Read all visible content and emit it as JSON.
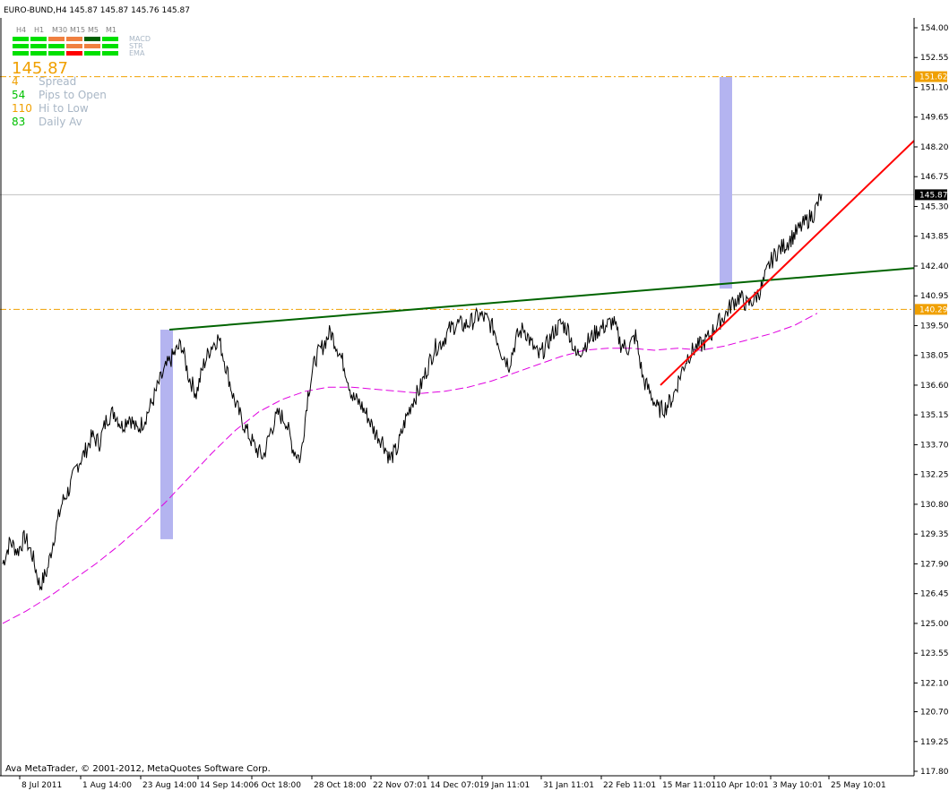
{
  "header": {
    "symbol_line": "EURO-BUND,H4  145.87 145.87 145.76 145.87"
  },
  "footer": {
    "copyright": "Ava MetaTrader, © 2001-2012, MetaQuotes Software Corp."
  },
  "indicator_panel": {
    "timeframes": [
      "H4",
      "H1",
      "M30",
      "M15",
      "M5",
      "M1"
    ],
    "rows": [
      {
        "name": "MACD",
        "cells": [
          "#00e000",
          "#00e000",
          "#f08040",
          "#f08040",
          "#006000",
          "#00e000"
        ]
      },
      {
        "name": "STR",
        "cells": [
          "#00e000",
          "#00e000",
          "#00e000",
          "#f08040",
          "#f08040",
          "#00e000"
        ]
      },
      {
        "name": "EMA",
        "cells": [
          "#00e000",
          "#00e000",
          "#00e000",
          "#ff0000",
          "#00e000",
          "#00e000"
        ]
      }
    ],
    "price": "145.87",
    "price_color": "#f0a000",
    "stats": [
      {
        "value": "4",
        "label": "Spread",
        "color": "#f0a000"
      },
      {
        "value": "54",
        "label": "Pips to Open",
        "color": "#00c000"
      },
      {
        "value": "110",
        "label": "Hi to Low",
        "color": "#f0a000"
      },
      {
        "value": "83",
        "label": "Daily Av",
        "color": "#00c000"
      }
    ],
    "label_color": "#a9b7c6"
  },
  "chart_data": {
    "type": "line",
    "title": "",
    "xlabel": "",
    "ylabel": "",
    "ylim": [
      117.8,
      155.0
    ],
    "y_ticks": [
      "154.00",
      "152.55",
      "151.10",
      "149.65",
      "148.20",
      "146.75",
      "145.30",
      "143.85",
      "142.40",
      "140.95",
      "139.50",
      "138.05",
      "136.60",
      "135.15",
      "133.70",
      "132.25",
      "130.80",
      "129.35",
      "127.90",
      "126.45",
      "125.00",
      "123.55",
      "122.10",
      "120.70",
      "119.25",
      "117.80"
    ],
    "x_ticks": [
      "8 Jul 2011",
      "1 Aug 14:00",
      "23 Aug 14:00",
      "14 Sep 14:00",
      "6 Oct 18:00",
      "28 Oct 18:00",
      "22 Nov 07:01",
      "14 Dec 07:01",
      "9 Jan 11:01",
      "31 Jan 11:01",
      "22 Feb 11:01",
      "15 Mar 11:01",
      "10 Apr 10:01",
      "3 May 10:01",
      "25 May 10:01"
    ],
    "current_price": {
      "label": "145.87",
      "value": 145.87,
      "color": "#000000"
    },
    "levels": [
      {
        "label": "151.62",
        "value": 151.62,
        "color": "#f0a000"
      },
      {
        "label": "140.29",
        "value": 140.29,
        "color": "#f0a000"
      }
    ],
    "price_series": {
      "name": "",
      "color": "#000000",
      "values": [
        127.9,
        129.0,
        128.5,
        129.2,
        128.3,
        126.8,
        127.6,
        129.4,
        130.9,
        131.6,
        132.7,
        133.3,
        134.1,
        133.8,
        135.0,
        135.3,
        134.6,
        135.1,
        134.4,
        134.9,
        135.7,
        136.7,
        137.5,
        138.1,
        138.6,
        137.0,
        136.2,
        137.6,
        138.5,
        138.9,
        137.5,
        136.0,
        135.0,
        134.2,
        133.5,
        133.1,
        134.4,
        135.2,
        134.9,
        133.5,
        133.0,
        136.2,
        137.9,
        138.5,
        139.2,
        138.4,
        137.4,
        136.0,
        135.7,
        135.1,
        134.3,
        133.9,
        133.0,
        133.5,
        134.8,
        135.8,
        136.4,
        137.4,
        138.4,
        138.7,
        139.3,
        139.6,
        139.5,
        139.7,
        140.0,
        139.8,
        139.3,
        138.2,
        137.6,
        138.9,
        139.4,
        138.6,
        138.0,
        138.5,
        139.2,
        139.6,
        139.3,
        138.0,
        138.5,
        138.9,
        139.3,
        139.5,
        139.7,
        138.6,
        138.4,
        139.0,
        136.9,
        136.2,
        135.4,
        135.5,
        136.0,
        137.1,
        138.0,
        138.4,
        138.6,
        139.0,
        139.6,
        140.0,
        140.6,
        140.9,
        140.5,
        140.8,
        141.4,
        142.5,
        143.1,
        143.4,
        143.8,
        144.2,
        144.6,
        145.0,
        145.9
      ]
    },
    "ma_series": {
      "name": "",
      "color": "#e000e0",
      "values": [
        125.0,
        125.6,
        126.3,
        127.1,
        127.9,
        128.8,
        129.8,
        130.9,
        132.1,
        133.3,
        134.4,
        135.3,
        135.9,
        136.3,
        136.5,
        136.5,
        136.4,
        136.3,
        136.2,
        136.3,
        136.5,
        136.8,
        137.2,
        137.6,
        138.0,
        138.3,
        138.4,
        138.4,
        138.3,
        138.4,
        138.3,
        138.5,
        138.8,
        139.1,
        139.5,
        140.1
      ]
    },
    "lines": [
      {
        "name": "",
        "color": "#006400",
        "from": {
          "x": "23 Aug 14:00",
          "y": 139.3
        },
        "to": {
          "x": "right-edge",
          "y": 142.3
        }
      },
      {
        "name": "",
        "color": "#ff0000",
        "from": {
          "x": "15 Mar 11:01",
          "y": 136.6
        },
        "to": {
          "x": "right-edge",
          "y": 148.5
        }
      }
    ],
    "bars": [
      {
        "name": "",
        "color": "#b4b4f0",
        "from": 129.1,
        "to": 139.3,
        "at": "23 Aug 14:00"
      },
      {
        "name": "",
        "color": "#b4b4f0",
        "from": 141.3,
        "to": 151.6,
        "at": "10 Apr 10:01"
      }
    ]
  }
}
